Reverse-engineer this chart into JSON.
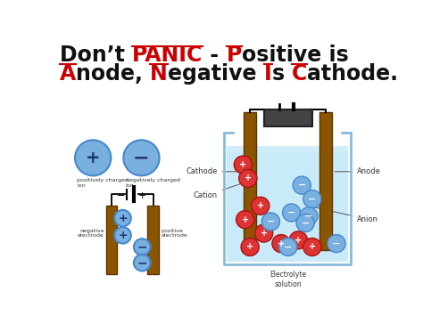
{
  "bg_color": "#ffffff",
  "title_fs": 17,
  "ion_color": "#7ab0e0",
  "ion_border": "#4488cc",
  "electrode_color": "#8B5500",
  "electrode_dark": "#5a3500",
  "beaker_edge": "#88bbdd",
  "water_color": "#c0e8f8",
  "battery_color": "#555555",
  "cation_color": "#dd3333",
  "cation_edge": "#aa1111",
  "anion_color": "#7ab0e0",
  "anion_edge": "#4488cc",
  "label_color": "#333333",
  "line_color": "#666666",
  "underlined": [
    "PANIC",
    "P",
    "A",
    "N",
    "I",
    "C"
  ],
  "red_color": "#cc0000",
  "black_color": "#111111"
}
